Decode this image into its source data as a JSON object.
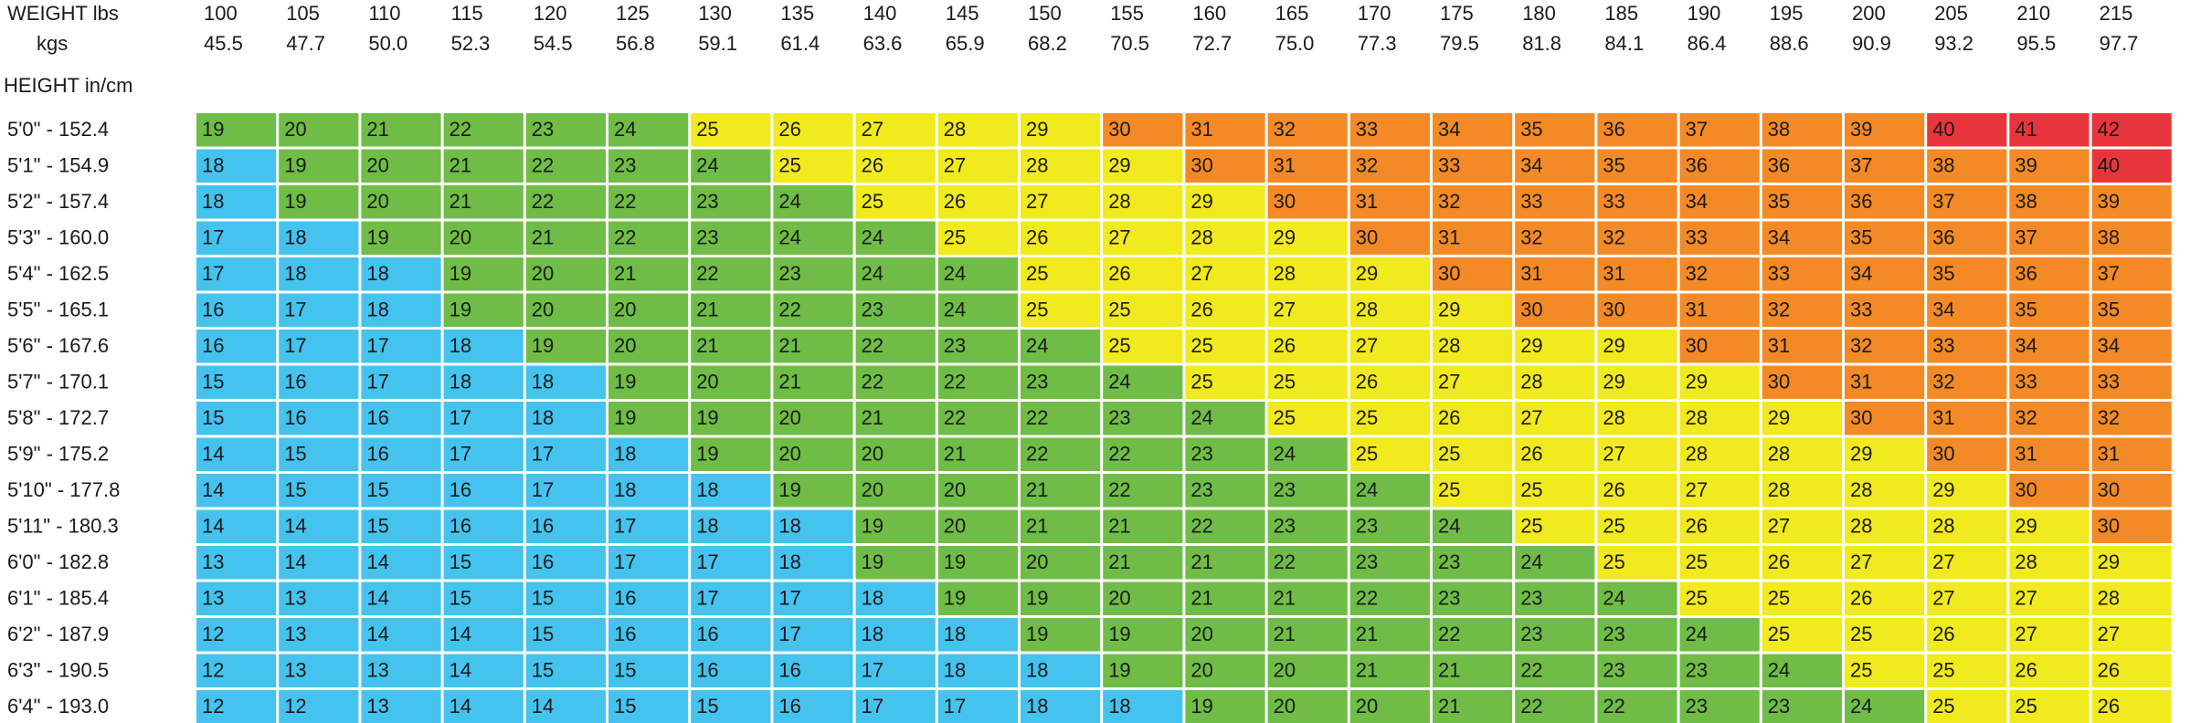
{
  "chart_data": {
    "type": "heatmap",
    "title": "",
    "weight_header": "WEIGHT lbs",
    "kgs_header": "kgs",
    "height_header": "HEIGHT in/cm",
    "weights_lbs": [
      "100",
      "105",
      "110",
      "115",
      "120",
      "125",
      "130",
      "135",
      "140",
      "145",
      "150",
      "155",
      "160",
      "165",
      "170",
      "175",
      "180",
      "185",
      "190",
      "195",
      "200",
      "205",
      "210",
      "215"
    ],
    "weights_kgs": [
      "45.5",
      "47.7",
      "50.0",
      "52.3",
      "54.5",
      "56.8",
      "59.1",
      "61.4",
      "63.6",
      "65.9",
      "68.2",
      "70.5",
      "72.7",
      "75.0",
      "77.3",
      "79.5",
      "81.8",
      "84.1",
      "86.4",
      "88.6",
      "90.9",
      "93.2",
      "95.5",
      "97.7"
    ],
    "heights": [
      "5'0\" - 152.4",
      "5'1\" - 154.9",
      "5'2\" - 157.4",
      "5'3\" - 160.0",
      "5'4\" - 162.5",
      "5'5\" - 165.1",
      "5'6\" - 167.6",
      "5'7\" - 170.1",
      "5'8\" - 172.7",
      "5'9\" - 175.2",
      "5'10\" - 177.8",
      "5'11\" - 180.3",
      "6'0\" - 182.8",
      "6'1\" - 185.4",
      "6'2\" - 187.9",
      "6'3\" - 190.5",
      "6'4\" - 193.0"
    ],
    "values": [
      [
        19,
        20,
        21,
        22,
        23,
        24,
        25,
        26,
        27,
        28,
        29,
        30,
        31,
        32,
        33,
        34,
        35,
        36,
        37,
        38,
        39,
        40,
        41,
        42
      ],
      [
        18,
        19,
        20,
        21,
        22,
        23,
        24,
        25,
        26,
        27,
        28,
        29,
        30,
        31,
        32,
        33,
        34,
        35,
        36,
        36,
        37,
        38,
        39,
        40
      ],
      [
        18,
        19,
        20,
        21,
        22,
        22,
        23,
        24,
        25,
        26,
        27,
        28,
        29,
        30,
        31,
        32,
        33,
        33,
        34,
        35,
        36,
        37,
        38,
        39
      ],
      [
        17,
        18,
        19,
        20,
        21,
        22,
        23,
        24,
        24,
        25,
        26,
        27,
        28,
        29,
        30,
        31,
        32,
        32,
        33,
        34,
        35,
        36,
        37,
        38
      ],
      [
        17,
        18,
        18,
        19,
        20,
        21,
        22,
        23,
        24,
        24,
        25,
        26,
        27,
        28,
        29,
        30,
        31,
        31,
        32,
        33,
        34,
        35,
        36,
        37
      ],
      [
        16,
        17,
        18,
        19,
        20,
        20,
        21,
        22,
        23,
        24,
        25,
        25,
        26,
        27,
        28,
        29,
        30,
        30,
        31,
        32,
        33,
        34,
        35,
        35
      ],
      [
        16,
        17,
        17,
        18,
        19,
        20,
        21,
        21,
        22,
        23,
        24,
        25,
        25,
        26,
        27,
        28,
        29,
        29,
        30,
        31,
        32,
        33,
        34,
        34
      ],
      [
        15,
        16,
        17,
        18,
        18,
        19,
        20,
        21,
        22,
        22,
        23,
        24,
        25,
        25,
        26,
        27,
        28,
        29,
        29,
        30,
        31,
        32,
        33,
        33
      ],
      [
        15,
        16,
        16,
        17,
        18,
        19,
        19,
        20,
        21,
        22,
        22,
        23,
        24,
        25,
        25,
        26,
        27,
        28,
        28,
        29,
        30,
        31,
        32,
        32
      ],
      [
        14,
        15,
        16,
        17,
        17,
        18,
        19,
        20,
        20,
        21,
        22,
        22,
        23,
        24,
        25,
        25,
        26,
        27,
        28,
        28,
        29,
        30,
        31,
        31
      ],
      [
        14,
        15,
        15,
        16,
        17,
        18,
        18,
        19,
        20,
        20,
        21,
        22,
        23,
        23,
        24,
        25,
        25,
        26,
        27,
        28,
        28,
        29,
        30,
        30
      ],
      [
        14,
        14,
        15,
        16,
        16,
        17,
        18,
        18,
        19,
        20,
        21,
        21,
        22,
        23,
        23,
        24,
        25,
        25,
        26,
        27,
        28,
        28,
        29,
        30
      ],
      [
        13,
        14,
        14,
        15,
        16,
        17,
        17,
        18,
        19,
        19,
        20,
        21,
        21,
        22,
        23,
        23,
        24,
        25,
        25,
        26,
        27,
        27,
        28,
        29
      ],
      [
        13,
        13,
        14,
        15,
        15,
        16,
        17,
        17,
        18,
        19,
        19,
        20,
        21,
        21,
        22,
        23,
        23,
        24,
        25,
        25,
        26,
        27,
        27,
        28
      ],
      [
        12,
        13,
        14,
        14,
        15,
        16,
        16,
        17,
        18,
        18,
        19,
        19,
        20,
        21,
        21,
        22,
        23,
        23,
        24,
        25,
        25,
        26,
        27,
        27
      ],
      [
        12,
        13,
        13,
        14,
        15,
        15,
        16,
        16,
        17,
        18,
        18,
        19,
        20,
        20,
        21,
        21,
        22,
        23,
        23,
        24,
        25,
        25,
        26,
        26
      ],
      [
        12,
        12,
        13,
        14,
        14,
        15,
        15,
        16,
        17,
        17,
        18,
        18,
        19,
        20,
        20,
        21,
        22,
        22,
        23,
        23,
        24,
        25,
        25,
        26
      ]
    ],
    "color_bands": [
      {
        "max": 18,
        "color": "#45c3ef"
      },
      {
        "max": 24,
        "color": "#6fbd46"
      },
      {
        "max": 29,
        "color": "#f1ea1c"
      },
      {
        "max": 39,
        "color": "#f38a26"
      },
      {
        "max": 99,
        "color": "#e8353b"
      }
    ]
  }
}
